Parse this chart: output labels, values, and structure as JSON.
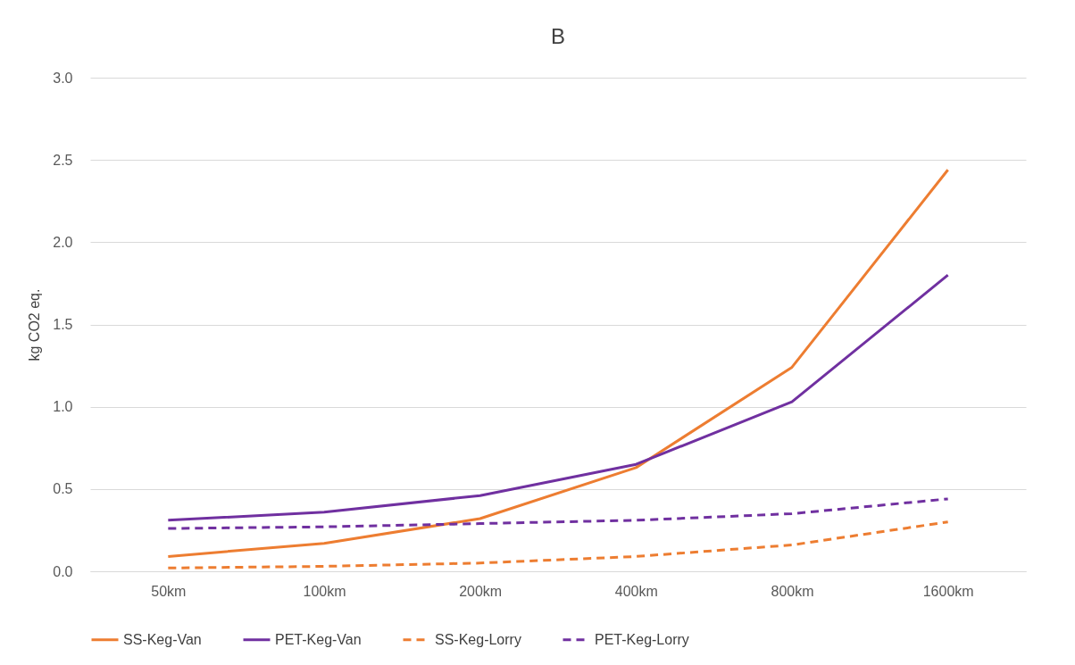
{
  "chart_data": {
    "type": "line",
    "title": "B",
    "ylabel": "kg CO2 eq.",
    "categories": [
      "50km",
      "100km",
      "200km",
      "400km",
      "800km",
      "1600km"
    ],
    "series": [
      {
        "name": "SS-Keg-Van",
        "color": "#ed7d31",
        "line_style": "solid",
        "values": [
          0.09,
          0.17,
          0.32,
          0.63,
          1.24,
          2.44
        ]
      },
      {
        "name": "PET-Keg-Van",
        "color": "#7030a0",
        "line_style": "solid",
        "values": [
          0.31,
          0.36,
          0.46,
          0.65,
          1.03,
          1.8
        ]
      },
      {
        "name": "SS-Keg-Lorry",
        "color": "#ed7d31",
        "line_style": "dashed",
        "values": [
          0.02,
          0.03,
          0.05,
          0.09,
          0.16,
          0.3
        ]
      },
      {
        "name": "PET-Keg-Lorry",
        "color": "#7030a0",
        "line_style": "dashed",
        "values": [
          0.26,
          0.27,
          0.29,
          0.31,
          0.35,
          0.44
        ]
      }
    ],
    "ylim": [
      0,
      3
    ],
    "yticks": [
      {
        "value": 0,
        "label": "0.0"
      },
      {
        "value": 0.5,
        "label": "0.5"
      },
      {
        "value": 1,
        "label": "1.0"
      },
      {
        "value": 1.5,
        "label": "1.5"
      },
      {
        "value": 2,
        "label": "2.0"
      },
      {
        "value": 2.5,
        "label": "2.5"
      },
      {
        "value": 3,
        "label": "3.0"
      }
    ],
    "grid": "y",
    "legend": "bottom",
    "marker": "none"
  }
}
